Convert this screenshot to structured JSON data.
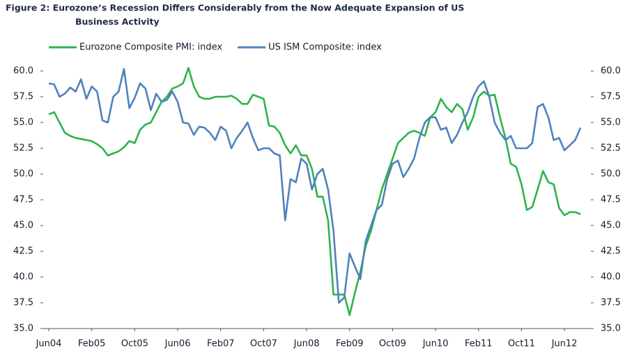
{
  "chart_data": {
    "type": "line",
    "title": [
      "Figure 2: Eurozone’s Recession Differs Considerably from the Now Adequate Expansion of US",
      "Business Activity"
    ],
    "categories": [
      "Jun04",
      null,
      null,
      null,
      null,
      null,
      null,
      null,
      "Feb05",
      null,
      null,
      null,
      null,
      null,
      null,
      null,
      "Oct05",
      null,
      null,
      null,
      null,
      null,
      null,
      null,
      "Jun06",
      null,
      null,
      null,
      null,
      null,
      null,
      null,
      "Feb07",
      null,
      null,
      null,
      null,
      null,
      null,
      null,
      "Oct07",
      null,
      null,
      null,
      null,
      null,
      null,
      null,
      "Jun08",
      null,
      null,
      null,
      null,
      null,
      null,
      null,
      "Feb09",
      null,
      null,
      null,
      null,
      null,
      null,
      null,
      "Oct09",
      null,
      null,
      null,
      null,
      null,
      null,
      null,
      "Jun10",
      null,
      null,
      null,
      null,
      null,
      null,
      null,
      "Feb11",
      null,
      null,
      null,
      null,
      null,
      null,
      null,
      "Oct11",
      null,
      null,
      null,
      null,
      null,
      null,
      null,
      "Jun12",
      null,
      null,
      null
    ],
    "series": [
      {
        "name": "Eurozone Composite PMI: index",
        "color": "#2db34a",
        "values": [
          55.8,
          56.0,
          55.0,
          54.0,
          53.7,
          53.5,
          53.4,
          53.3,
          53.2,
          52.9,
          52.5,
          51.8,
          52.0,
          52.2,
          52.6,
          53.2,
          53.0,
          54.3,
          54.8,
          55.0,
          56.0,
          57.0,
          57.5,
          58.3,
          58.5,
          58.8,
          60.3,
          58.5,
          57.5,
          57.3,
          57.3,
          57.5,
          57.5,
          57.5,
          57.6,
          57.3,
          56.8,
          56.8,
          57.7,
          57.5,
          57.3,
          54.7,
          54.6,
          54.0,
          52.8,
          52.0,
          52.8,
          51.8,
          51.8,
          50.5,
          47.8,
          47.8,
          45.5,
          38.3,
          38.3,
          38.3,
          36.3,
          38.5,
          40.5,
          43.0,
          44.5,
          46.5,
          48.5,
          50.0,
          51.5,
          53.0,
          53.5,
          54.0,
          54.2,
          54.0,
          53.7,
          55.5,
          56.0,
          57.3,
          56.5,
          56.0,
          56.8,
          56.3,
          54.3,
          55.5,
          57.5,
          58.0,
          57.6,
          57.7,
          55.5,
          53.5,
          51.0,
          50.7,
          49.0,
          46.5,
          46.8,
          48.5,
          50.3,
          49.2,
          49.0,
          46.7,
          46.0,
          46.3,
          46.3,
          46.1
        ]
      },
      {
        "name": "US ISM Composite: index",
        "color": "#4f81bd",
        "values": [
          58.8,
          58.7,
          57.5,
          57.8,
          58.4,
          58.0,
          59.2,
          57.3,
          58.5,
          58.0,
          55.2,
          55.0,
          57.5,
          58.0,
          60.2,
          56.4,
          57.4,
          58.8,
          58.3,
          56.2,
          57.8,
          57.0,
          57.2,
          58.0,
          57.0,
          55.0,
          54.9,
          53.8,
          54.6,
          54.5,
          54.0,
          53.3,
          54.6,
          54.2,
          52.5,
          53.5,
          54.2,
          55.0,
          53.5,
          52.3,
          52.5,
          52.5,
          52.0,
          51.8,
          45.5,
          49.5,
          49.2,
          51.5,
          51.0,
          48.5,
          50.0,
          50.5,
          48.5,
          44.5,
          37.5,
          38.0,
          42.3,
          41.0,
          39.8,
          43.5,
          45.0,
          46.5,
          47.0,
          49.5,
          51.0,
          51.3,
          49.7,
          50.5,
          51.5,
          53.5,
          55.0,
          55.5,
          55.5,
          54.3,
          54.5,
          53.0,
          53.8,
          55.0,
          56.0,
          57.5,
          58.5,
          59.0,
          57.5,
          55.0,
          54.0,
          53.3,
          53.7,
          52.5,
          52.5,
          52.5,
          53.0,
          56.5,
          56.8,
          55.5,
          53.3,
          53.5,
          52.3,
          52.8,
          53.3,
          54.5
        ]
      }
    ],
    "ylim": [
      35,
      60
    ],
    "yticks": [
      {
        "value": 35,
        "label": "35.0"
      },
      37.5,
      {
        "value": 40,
        "label": "40.0"
      },
      42.5,
      {
        "value": 45,
        "label": "45.0"
      },
      47.5,
      {
        "value": 50,
        "label": "50.0"
      },
      52.5,
      {
        "value": 55,
        "label": "55.0"
      },
      57.5,
      {
        "value": 60,
        "label": "60.0"
      }
    ],
    "y2lim": [
      35,
      60
    ],
    "y2ticks": [
      {
        "value": 35,
        "label": "35.0"
      },
      37.5,
      {
        "value": 40,
        "label": "40.0"
      },
      42.5,
      {
        "value": 45,
        "label": "45.0"
      },
      47.5,
      {
        "value": 50,
        "label": "50.0"
      },
      52.5,
      {
        "value": 55,
        "label": "55.0"
      },
      57.5,
      {
        "value": 60,
        "label": "60.0"
      }
    ]
  }
}
